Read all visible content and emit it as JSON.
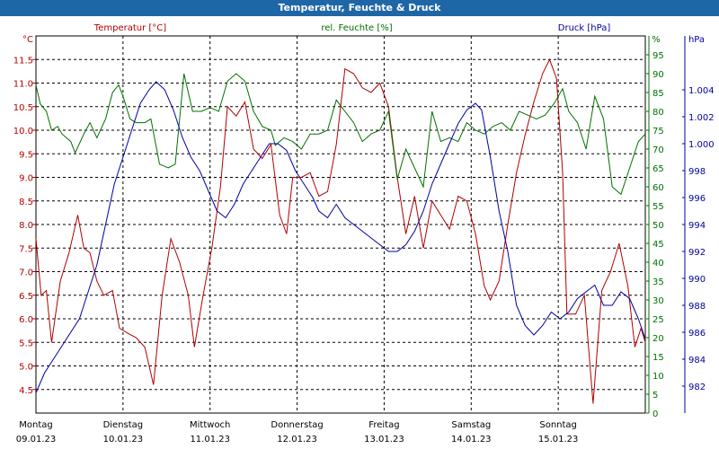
{
  "chart_data": {
    "type": "line",
    "title": "Temperatur, Feuchte & Druck",
    "grid": true,
    "colors": {
      "temperature": "#b00000",
      "humidity": "#007000",
      "pressure": "#0000a0",
      "titlebar": "#1f66a6"
    },
    "x_days": [
      {
        "day": "Montag",
        "date": "09.01.23"
      },
      {
        "day": "Dienstag",
        "date": "10.01.23"
      },
      {
        "day": "Mittwoch",
        "date": "11.01.23"
      },
      {
        "day": "Donnerstag",
        "date": "12.01.23"
      },
      {
        "day": "Freitag",
        "date": "13.01.23"
      },
      {
        "day": "Samstag",
        "date": "14.01.23"
      },
      {
        "day": "Sonntag",
        "date": "15.01.23"
      }
    ],
    "axes": {
      "temperature": {
        "label": "Temperatur [°C]",
        "unit": "°C",
        "min": 4.0,
        "max": 12.0,
        "ticks": [
          "4.5",
          "5.0",
          "5.5",
          "6.0",
          "6.5",
          "7.0",
          "7.5",
          "8.0",
          "8.5",
          "9.0",
          "9.5",
          "10.0",
          "10.5",
          "11.0",
          "11.5"
        ]
      },
      "humidity": {
        "label": "rel. Feuchte [%]",
        "unit": "%",
        "min": 0,
        "max": 100,
        "ticks": [
          "0",
          "5",
          "10",
          "15",
          "20",
          "25",
          "30",
          "35",
          "40",
          "45",
          "50",
          "55",
          "60",
          "65",
          "70",
          "75",
          "80",
          "85",
          "90",
          "95"
        ]
      },
      "pressure": {
        "label": "Druck [hPa]",
        "unit": "hPa",
        "min": 980,
        "max": 1008,
        "ticks": [
          "982",
          "984",
          "986",
          "988",
          "990",
          "992",
          "994",
          "996",
          "998",
          "1.000",
          "1.002",
          "1.004"
        ]
      }
    },
    "x_range_days": [
      0,
      7
    ],
    "series": [
      {
        "name": "Temperatur [°C]",
        "axis": "temperature",
        "points": [
          [
            0.0,
            7.7
          ],
          [
            0.06,
            6.5
          ],
          [
            0.12,
            6.6
          ],
          [
            0.18,
            5.5
          ],
          [
            0.28,
            6.8
          ],
          [
            0.38,
            7.4
          ],
          [
            0.48,
            8.2
          ],
          [
            0.55,
            7.5
          ],
          [
            0.62,
            7.4
          ],
          [
            0.7,
            6.8
          ],
          [
            0.78,
            6.5
          ],
          [
            0.88,
            6.6
          ],
          [
            0.96,
            5.8
          ],
          [
            1.05,
            5.7
          ],
          [
            1.15,
            5.6
          ],
          [
            1.25,
            5.4
          ],
          [
            1.35,
            4.6
          ],
          [
            1.45,
            6.5
          ],
          [
            1.55,
            7.7
          ],
          [
            1.65,
            7.2
          ],
          [
            1.75,
            6.5
          ],
          [
            1.82,
            5.4
          ],
          [
            1.92,
            6.5
          ],
          [
            2.02,
            7.5
          ],
          [
            2.12,
            8.8
          ],
          [
            2.2,
            10.5
          ],
          [
            2.3,
            10.3
          ],
          [
            2.4,
            10.6
          ],
          [
            2.5,
            9.6
          ],
          [
            2.6,
            9.4
          ],
          [
            2.7,
            9.7
          ],
          [
            2.8,
            8.2
          ],
          [
            2.88,
            7.8
          ],
          [
            2.95,
            9.0
          ],
          [
            3.05,
            9.0
          ],
          [
            3.15,
            9.1
          ],
          [
            3.25,
            8.6
          ],
          [
            3.35,
            8.7
          ],
          [
            3.45,
            9.7
          ],
          [
            3.55,
            11.3
          ],
          [
            3.65,
            11.2
          ],
          [
            3.75,
            10.9
          ],
          [
            3.85,
            10.8
          ],
          [
            3.95,
            11.0
          ],
          [
            4.05,
            10.5
          ],
          [
            4.15,
            9.0
          ],
          [
            4.25,
            7.8
          ],
          [
            4.35,
            8.6
          ],
          [
            4.45,
            7.5
          ],
          [
            4.55,
            8.5
          ],
          [
            4.65,
            8.2
          ],
          [
            4.75,
            7.9
          ],
          [
            4.85,
            8.6
          ],
          [
            4.95,
            8.5
          ],
          [
            5.05,
            7.8
          ],
          [
            5.15,
            6.7
          ],
          [
            5.22,
            6.4
          ],
          [
            5.32,
            6.8
          ],
          [
            5.42,
            8.0
          ],
          [
            5.52,
            9.1
          ],
          [
            5.62,
            9.9
          ],
          [
            5.72,
            10.6
          ],
          [
            5.82,
            11.2
          ],
          [
            5.9,
            11.5
          ],
          [
            5.98,
            11.1
          ],
          [
            6.05,
            9.1
          ],
          [
            6.1,
            6.1
          ],
          [
            6.2,
            6.1
          ],
          [
            6.3,
            6.5
          ],
          [
            6.4,
            4.2
          ],
          [
            6.5,
            6.6
          ],
          [
            6.6,
            7.0
          ],
          [
            6.7,
            7.6
          ],
          [
            6.8,
            6.7
          ],
          [
            6.88,
            5.4
          ],
          [
            6.95,
            5.8
          ],
          [
            7.0,
            5.5
          ]
        ]
      },
      {
        "name": "rel. Feuchte [%]",
        "axis": "humidity",
        "points": [
          [
            0.0,
            87
          ],
          [
            0.05,
            82
          ],
          [
            0.12,
            80
          ],
          [
            0.18,
            75
          ],
          [
            0.25,
            76
          ],
          [
            0.3,
            74
          ],
          [
            0.4,
            72
          ],
          [
            0.45,
            69
          ],
          [
            0.55,
            74
          ],
          [
            0.62,
            77
          ],
          [
            0.7,
            73
          ],
          [
            0.8,
            78
          ],
          [
            0.88,
            85
          ],
          [
            0.95,
            87
          ],
          [
            1.0,
            84
          ],
          [
            1.08,
            78
          ],
          [
            1.15,
            77
          ],
          [
            1.25,
            77
          ],
          [
            1.32,
            78
          ],
          [
            1.42,
            66
          ],
          [
            1.52,
            65
          ],
          [
            1.6,
            66
          ],
          [
            1.7,
            90
          ],
          [
            1.8,
            80
          ],
          [
            1.9,
            80
          ],
          [
            2.0,
            81
          ],
          [
            2.1,
            80
          ],
          [
            2.2,
            88
          ],
          [
            2.3,
            90
          ],
          [
            2.4,
            88
          ],
          [
            2.5,
            80
          ],
          [
            2.6,
            76
          ],
          [
            2.7,
            75
          ],
          [
            2.75,
            71
          ],
          [
            2.85,
            73
          ],
          [
            2.95,
            72
          ],
          [
            3.05,
            70
          ],
          [
            3.15,
            74
          ],
          [
            3.25,
            74
          ],
          [
            3.35,
            75
          ],
          [
            3.45,
            83
          ],
          [
            3.55,
            80
          ],
          [
            3.65,
            77
          ],
          [
            3.75,
            72
          ],
          [
            3.85,
            74
          ],
          [
            3.95,
            75
          ],
          [
            4.05,
            80
          ],
          [
            4.15,
            62
          ],
          [
            4.25,
            70
          ],
          [
            4.35,
            65
          ],
          [
            4.45,
            60
          ],
          [
            4.55,
            80
          ],
          [
            4.65,
            72
          ],
          [
            4.75,
            73
          ],
          [
            4.85,
            72
          ],
          [
            4.95,
            77
          ],
          [
            5.05,
            75
          ],
          [
            5.15,
            74
          ],
          [
            5.25,
            76
          ],
          [
            5.35,
            77
          ],
          [
            5.45,
            75
          ],
          [
            5.55,
            80
          ],
          [
            5.65,
            79
          ],
          [
            5.75,
            78
          ],
          [
            5.85,
            79
          ],
          [
            5.95,
            82
          ],
          [
            6.05,
            86
          ],
          [
            6.12,
            80
          ],
          [
            6.22,
            77
          ],
          [
            6.32,
            70
          ],
          [
            6.42,
            84
          ],
          [
            6.52,
            78
          ],
          [
            6.62,
            60
          ],
          [
            6.72,
            58
          ],
          [
            6.82,
            65
          ],
          [
            6.92,
            72
          ],
          [
            7.0,
            74
          ]
        ]
      },
      {
        "name": "Druck [hPa]",
        "axis": "pressure",
        "points": [
          [
            0.0,
            981.5
          ],
          [
            0.1,
            983
          ],
          [
            0.2,
            984
          ],
          [
            0.3,
            985
          ],
          [
            0.4,
            986
          ],
          [
            0.5,
            987
          ],
          [
            0.6,
            989
          ],
          [
            0.7,
            991
          ],
          [
            0.8,
            994
          ],
          [
            0.9,
            997
          ],
          [
            1.0,
            999
          ],
          [
            1.1,
            1001
          ],
          [
            1.2,
            1003
          ],
          [
            1.3,
            1004
          ],
          [
            1.38,
            1004.6
          ],
          [
            1.48,
            1004
          ],
          [
            1.58,
            1002.5
          ],
          [
            1.68,
            1000.5
          ],
          [
            1.78,
            999
          ],
          [
            1.88,
            998
          ],
          [
            1.98,
            996.5
          ],
          [
            2.08,
            995
          ],
          [
            2.18,
            994.5
          ],
          [
            2.28,
            995.5
          ],
          [
            2.38,
            997
          ],
          [
            2.48,
            998
          ],
          [
            2.58,
            999
          ],
          [
            2.68,
            1000
          ],
          [
            2.78,
            1000
          ],
          [
            2.88,
            999.5
          ],
          [
            2.98,
            998
          ],
          [
            3.08,
            997
          ],
          [
            3.18,
            996
          ],
          [
            3.25,
            995
          ],
          [
            3.35,
            994.5
          ],
          [
            3.45,
            995.5
          ],
          [
            3.55,
            994.5
          ],
          [
            3.65,
            994
          ],
          [
            3.75,
            993.5
          ],
          [
            3.85,
            993
          ],
          [
            3.95,
            992.5
          ],
          [
            4.05,
            992
          ],
          [
            4.15,
            992
          ],
          [
            4.25,
            992.5
          ],
          [
            4.35,
            993.5
          ],
          [
            4.45,
            995
          ],
          [
            4.55,
            997
          ],
          [
            4.65,
            998.5
          ],
          [
            4.75,
            1000
          ],
          [
            4.85,
            1001.5
          ],
          [
            4.95,
            1002.5
          ],
          [
            5.05,
            1003
          ],
          [
            5.12,
            1002.5
          ],
          [
            5.22,
            999
          ],
          [
            5.32,
            995
          ],
          [
            5.42,
            992
          ],
          [
            5.52,
            988
          ],
          [
            5.62,
            986.5
          ],
          [
            5.72,
            985.8
          ],
          [
            5.82,
            986.5
          ],
          [
            5.92,
            987.5
          ],
          [
            6.02,
            987
          ],
          [
            6.12,
            987.5
          ],
          [
            6.22,
            988.5
          ],
          [
            6.32,
            989
          ],
          [
            6.42,
            989.5
          ],
          [
            6.52,
            988
          ],
          [
            6.62,
            988
          ],
          [
            6.72,
            989
          ],
          [
            6.82,
            988.5
          ],
          [
            6.92,
            987
          ],
          [
            7.0,
            985.5
          ]
        ]
      }
    ]
  }
}
